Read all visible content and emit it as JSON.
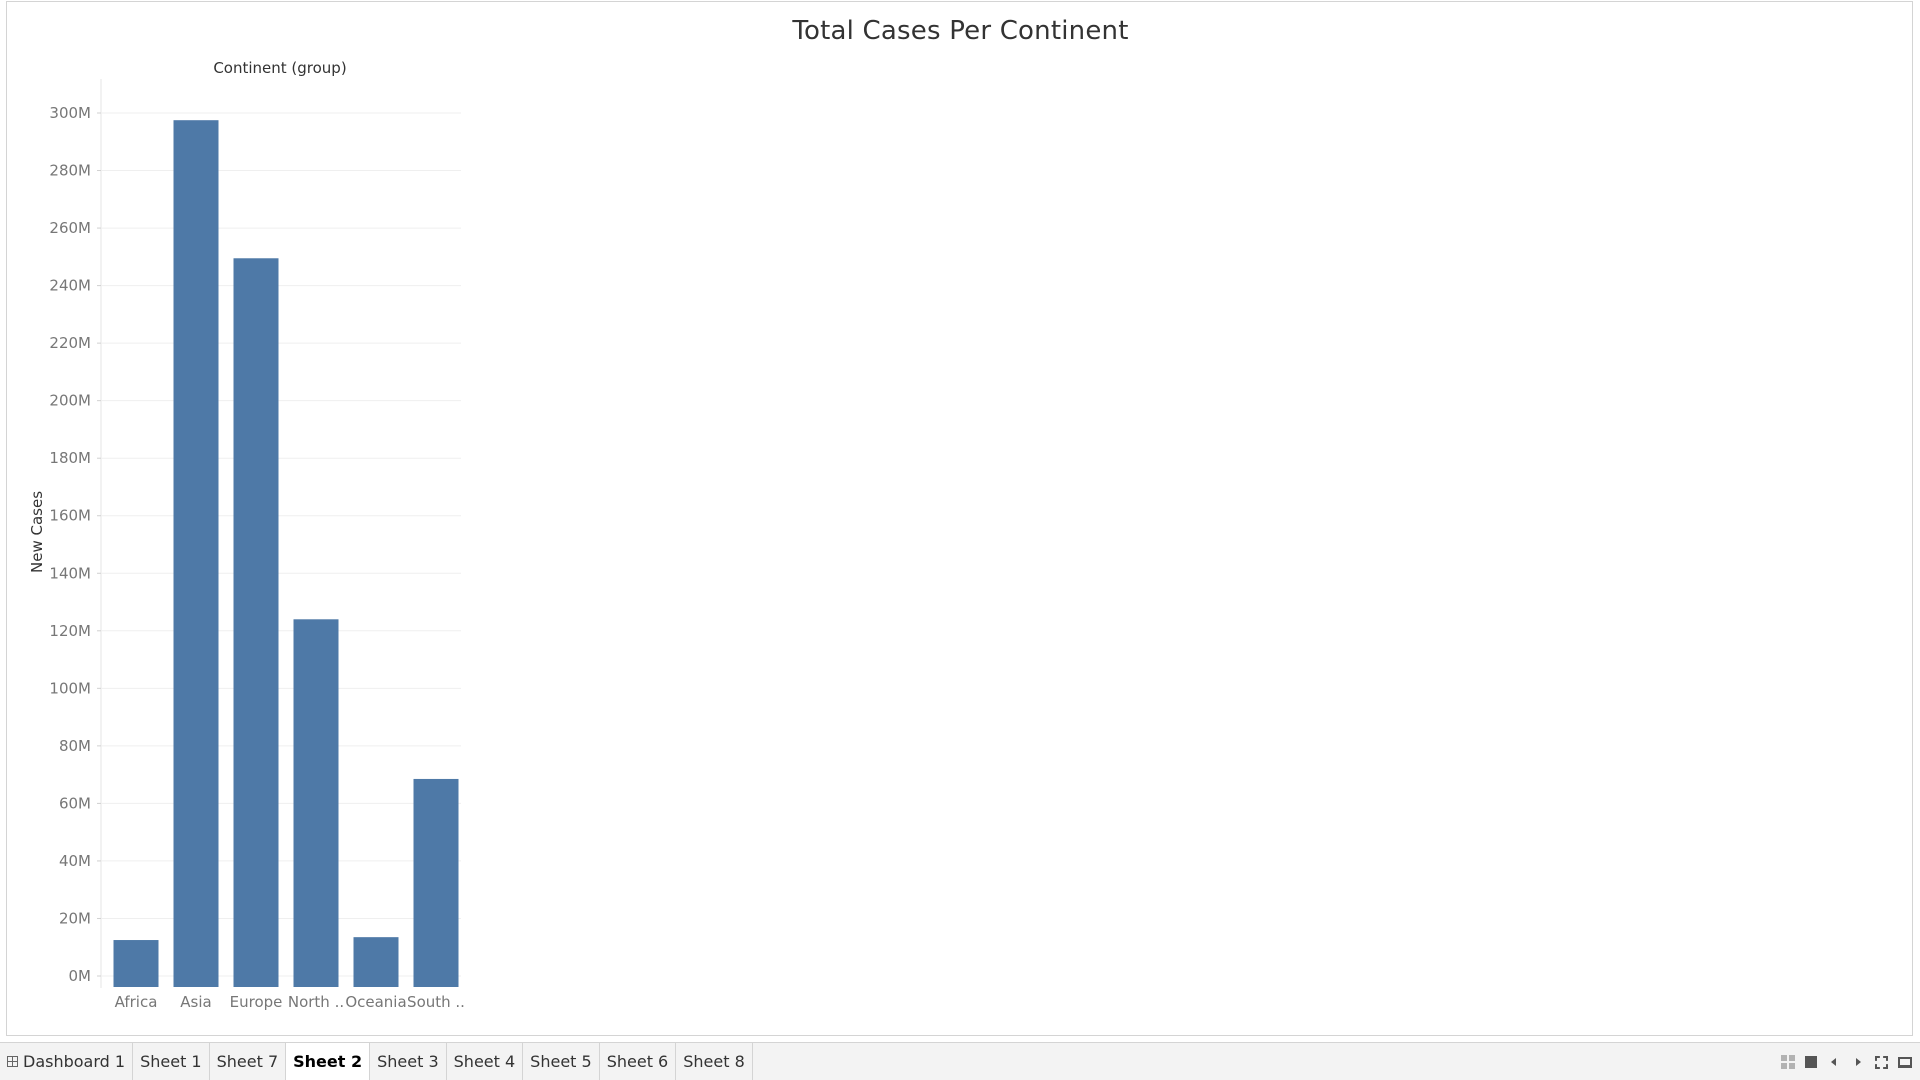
{
  "sheet": {
    "title": "Total Cases Per Continent"
  },
  "chart_data": {
    "type": "bar",
    "title": "Total Cases Per Continent",
    "column_header": "Continent (group)",
    "xlabel": "",
    "ylabel": "New Cases",
    "categories": [
      "Africa",
      "Asia",
      "Europe",
      "North ..",
      "Oceania",
      "South .."
    ],
    "values": [
      12.5,
      297.5,
      249.5,
      124.0,
      13.5,
      68.5
    ],
    "value_unit": "M",
    "ylim": [
      0,
      300
    ],
    "yticks": [
      0,
      20,
      40,
      60,
      80,
      100,
      120,
      140,
      160,
      180,
      200,
      220,
      240,
      260,
      280,
      300
    ],
    "ytick_labels": [
      "0M",
      "20M",
      "40M",
      "60M",
      "80M",
      "100M",
      "120M",
      "140M",
      "160M",
      "180M",
      "200M",
      "220M",
      "240M",
      "260M",
      "280M",
      "300M"
    ],
    "grid": true,
    "bar_color": "#4e79a7"
  },
  "tabbar": {
    "tabs": [
      {
        "label": "Dashboard 1",
        "kind": "dashboard",
        "active": false
      },
      {
        "label": "Sheet 1",
        "kind": "sheet",
        "active": false
      },
      {
        "label": "Sheet 7",
        "kind": "sheet",
        "active": false
      },
      {
        "label": "Sheet 2",
        "kind": "sheet",
        "active": true
      },
      {
        "label": "Sheet 3",
        "kind": "sheet",
        "active": false
      },
      {
        "label": "Sheet 4",
        "kind": "sheet",
        "active": false
      },
      {
        "label": "Sheet 5",
        "kind": "sheet",
        "active": false
      },
      {
        "label": "Sheet 6",
        "kind": "sheet",
        "active": false
      },
      {
        "label": "Sheet 8",
        "kind": "sheet",
        "active": false
      }
    ],
    "controls": [
      "grid-icon",
      "square-icon",
      "left-icon",
      "right-icon",
      "fullscreen-icon",
      "present-icon"
    ]
  }
}
